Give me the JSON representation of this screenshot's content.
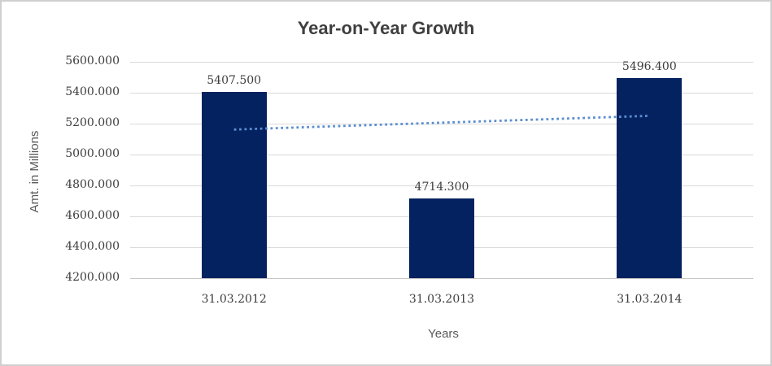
{
  "chart_data": {
    "type": "bar",
    "title": "Year-on-Year Growth",
    "xlabel": "Years",
    "ylabel": "Amt. in Millions",
    "categories": [
      "31.03.2012",
      "31.03.2013",
      "31.03.2014"
    ],
    "values": [
      5407.5,
      4714.3,
      5496.4
    ],
    "data_labels": [
      "5407.500",
      "4714.300",
      "5496.400"
    ],
    "ylim": [
      4200,
      5600
    ],
    "y_tick_step": 200,
    "y_ticks": [
      "5600.000",
      "5400.000",
      "5200.000",
      "5000.000",
      "4800.000",
      "4600.000",
      "4400.000",
      "4200.000"
    ],
    "grid": true,
    "legend_position": "none",
    "trendline": {
      "type": "linear",
      "style": "dotted",
      "start_value": 5161.6,
      "end_value": 5250.5
    }
  },
  "colors": {
    "bar": "#04225f",
    "trendline": "#5b8ed0",
    "gridline": "#d9d9d9",
    "axis_line": "#c6c6c6",
    "title": "#3f3f3f",
    "axis_title": "#595959",
    "tick_label": "#3d3d3d",
    "frame_border": "#cfcfcf",
    "background": "#ffffff"
  }
}
